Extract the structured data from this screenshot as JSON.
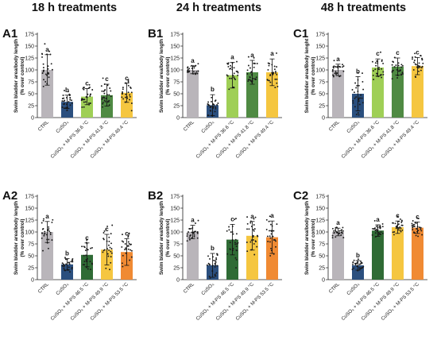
{
  "column_titles": [
    "18 h treatments",
    "24 h treatments",
    "48 h treatments"
  ],
  "colors": {
    "control": "#b9b5ba",
    "cuso4": "#2b4f7e",
    "low": "#9fcf56",
    "mid": "#4f8a43",
    "high": "#f5c640",
    "orange": "#f08a33",
    "dark_green": "#2f6b35"
  },
  "chart_data": [
    {
      "type": "bar",
      "label": "A1",
      "ylabel": "Swim bladder area/body length (% over control)",
      "ylim": [
        0,
        175
      ],
      "yticks": [
        0,
        25,
        50,
        75,
        100,
        125,
        150,
        175
      ],
      "categories": [
        "CTRL",
        "CuSO₄",
        "CuSO₄ + M-PS 36.6 °C",
        "CuSO₄ + M-PS 41.8 °C",
        "CuSO₄ + M-PS 49.4 °C"
      ],
      "values": [
        100,
        33,
        44,
        47,
        52
      ],
      "errors": [
        32,
        14,
        17,
        23,
        20
      ],
      "letters": [
        "a",
        "b",
        "c",
        "c",
        "c"
      ],
      "colors": [
        "#b9b5ba",
        "#2b4f7e",
        "#9fcf56",
        "#4f8a43",
        "#f5c640"
      ]
    },
    {
      "type": "bar",
      "label": "B1",
      "ylabel": "Swim bladder area/body length (% over control)",
      "ylim": [
        0,
        175
      ],
      "yticks": [
        0,
        25,
        50,
        75,
        100,
        125,
        150,
        175
      ],
      "categories": [
        "CTRL",
        "CuSO₄",
        "CuSO₄ + M-PS 36.6 °C",
        "CuSO₄ + M-PS 41.8 °C",
        "CuSO₄ + M-PS 49.4 °C"
      ],
      "values": [
        100,
        26,
        89,
        95,
        95
      ],
      "errors": [
        8,
        22,
        27,
        25,
        28
      ],
      "letters": [
        "a",
        "b",
        "a",
        "a",
        "a"
      ],
      "colors": [
        "#b9b5ba",
        "#2b4f7e",
        "#9fcf56",
        "#4f8a43",
        "#f5c640"
      ]
    },
    {
      "type": "bar",
      "label": "C1",
      "ylabel": "Swim bladder area/Body lenght (% over control)",
      "ylim": [
        0,
        175
      ],
      "yticks": [
        0,
        25,
        50,
        75,
        100,
        125,
        150,
        175
      ],
      "categories": [
        "CTRL",
        "CuSO₄",
        "CuSO₄ + M-PS 36.6 °C",
        "CuSO₄ + M-PS 41.8 °C",
        "CuSO₄ + M-PS 49.4 °C"
      ],
      "values": [
        100,
        50,
        105,
        107,
        108
      ],
      "errors": [
        12,
        36,
        18,
        18,
        18
      ],
      "letters": [
        "a",
        "b",
        "c",
        "c",
        "c"
      ],
      "colors": [
        "#b9b5ba",
        "#2b4f7e",
        "#9fcf56",
        "#4f8a43",
        "#f5c640"
      ]
    },
    {
      "type": "bar",
      "label": "A2",
      "ylabel": "Swim bladder area/body length (% over control)",
      "ylim": [
        0,
        175
      ],
      "yticks": [
        0,
        25,
        50,
        75,
        100,
        125,
        150,
        175
      ],
      "categories": [
        "CTRL",
        "CuSO₄",
        "CuSO₄ + M-PS 46.5 °C",
        "CuSO₄ + M-PS 49.9 °C",
        "CuSO₄ + M-PS 53.5 °C"
      ],
      "values": [
        100,
        32,
        52,
        63,
        58
      ],
      "errors": [
        22,
        12,
        25,
        32,
        28
      ],
      "letters": [
        "a",
        "b",
        "c",
        "c",
        "c"
      ],
      "colors": [
        "#b9b5ba",
        "#2b4f7e",
        "#2f6b35",
        "#f5c640",
        "#f08a33"
      ]
    },
    {
      "type": "bar",
      "label": "B2",
      "ylabel": "Swim bladder area/body length (% over control)",
      "ylim": [
        0,
        175
      ],
      "yticks": [
        0,
        25,
        50,
        75,
        100,
        125,
        150,
        175
      ],
      "categories": [
        "CTRL",
        "CuSO₄",
        "CuSO₄ + M-PS 46.5 °C",
        "CuSO₄ + M-PS 49.9 °C",
        "CuSO₄ + M-PS 53.5 °C"
      ],
      "values": [
        100,
        30,
        84,
        92,
        89
      ],
      "errors": [
        14,
        25,
        32,
        30,
        34
      ],
      "letters": [
        "a",
        "b",
        "c",
        "a",
        "a"
      ],
      "colors": [
        "#b9b5ba",
        "#2b4f7e",
        "#2f6b35",
        "#f5c640",
        "#f08a33"
      ]
    },
    {
      "type": "bar",
      "label": "C2",
      "ylabel": "Swim bladder area/body length (% over control)",
      "ylim": [
        0,
        175
      ],
      "yticks": [
        0,
        25,
        50,
        75,
        100,
        125,
        150,
        175
      ],
      "categories": [
        "CTRL",
        "CuSO₄",
        "CuSO₄ + M-PS 46.5 °C",
        "CuSO₄ + M-PS 49.9 °C",
        "CuSO₄ + M-PS 53.5 °C"
      ],
      "values": [
        100,
        30,
        103,
        110,
        109
      ],
      "errors": [
        8,
        10,
        12,
        13,
        12
      ],
      "letters": [
        "a",
        "b",
        "a",
        "c",
        "c"
      ],
      "colors": [
        "#b9b5ba",
        "#2b4f7e",
        "#2f6b35",
        "#f5c640",
        "#f08a33"
      ]
    }
  ]
}
